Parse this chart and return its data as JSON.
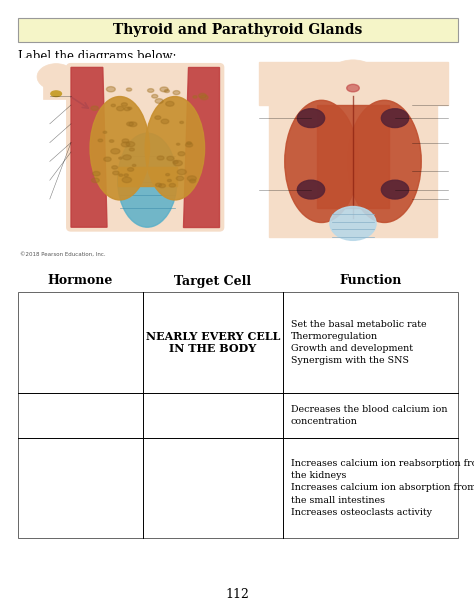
{
  "title": "Thyroid and Parathyroid Glands",
  "title_bg": "#f5f5c8",
  "subtitle": "Label the diagrams below:",
  "page_number": "112",
  "table_headers": [
    "Hormone",
    "Target Cell",
    "Function"
  ],
  "table_rows": [
    {
      "hormone": "",
      "target_cell": "NEARLY EVERY CELL\nIN THE BODY",
      "function": "Set the basal metabolic rate\nThermoregulation\nGrowth and development\nSynergism with the SNS"
    },
    {
      "hormone": "",
      "target_cell": "",
      "function": "Decreases the blood calcium ion\nconcentration"
    },
    {
      "hormone": "",
      "target_cell": "",
      "function": "Increases calcium ion reabsorption from\nthe kidneys\nIncreases calcium ion absorption from\nthe small intestines\nIncreases osteoclasts activity"
    }
  ],
  "bg_color": "#ffffff",
  "copyright": "©2018 Pearson Education, Inc."
}
